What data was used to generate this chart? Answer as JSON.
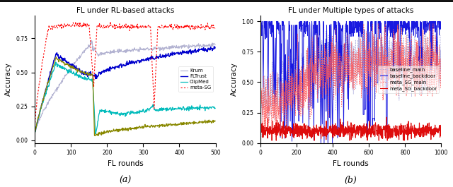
{
  "title_a": "FL under RL-based attacks",
  "title_b": "FL under Multiple types of attacks",
  "xlabel": "FL rounds",
  "ylabel": "Accuracy",
  "caption_a": "(a)",
  "caption_b": "(b)",
  "ax_a": {
    "xlim": [
      0,
      500
    ],
    "ylim": [
      -0.02,
      0.92
    ],
    "xticks": [
      0,
      100,
      200,
      300,
      400,
      500
    ],
    "yticks": [
      0.0,
      0.25,
      0.5,
      0.75
    ]
  },
  "ax_b": {
    "xlim": [
      0,
      1000
    ],
    "ylim": [
      0.0,
      1.05
    ],
    "xticks": [
      0,
      200,
      400,
      600,
      800,
      1000
    ],
    "yticks": [
      0.0,
      0.25,
      0.5,
      0.75,
      1.0
    ]
  },
  "legend_a": [
    "Krum",
    "FLTrust",
    "ClipMed",
    "meta-SG"
  ],
  "legend_b": [
    "baseline_main",
    "baseline_backdoor",
    "meta_SG_main",
    "meta_SG_backdoor"
  ],
  "colors_a": {
    "Krum": "#aaaacc",
    "FLTrust": "#0000cc",
    "ClipMed": "#00bbbb",
    "meta-SG": "#ff0000",
    "olive": "#888800"
  },
  "colors_b": {
    "baseline_main": "#aaaadd",
    "baseline_backdoor": "#0000dd",
    "meta_SG_main": "#ff5555",
    "meta_SG_backdoor": "#dd0000"
  },
  "bg_color": "#ffffff",
  "top_border_color": "#000000"
}
